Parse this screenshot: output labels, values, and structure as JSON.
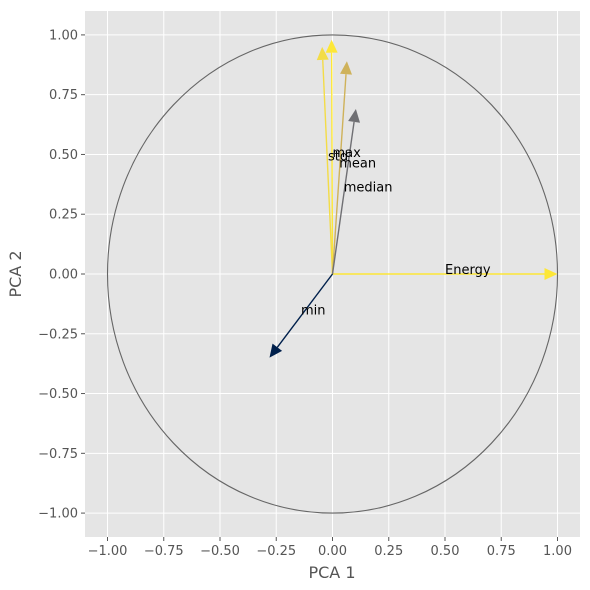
{
  "chart_data": {
    "type": "scatter",
    "subtype": "pca-correlation-circle",
    "xlabel": "PCA 1",
    "ylabel": "PCA 2",
    "xlim": [
      -1.1,
      1.1
    ],
    "ylim": [
      -1.1,
      1.1
    ],
    "xticks": [
      -1.0,
      -0.75,
      -0.5,
      -0.25,
      0.0,
      0.25,
      0.5,
      0.75,
      1.0
    ],
    "yticks": [
      -1.0,
      -0.75,
      -0.5,
      -0.25,
      0.0,
      0.25,
      0.5,
      0.75,
      1.0
    ],
    "xtick_labels": [
      "−1.00",
      "−0.75",
      "−0.50",
      "−0.25",
      "0.00",
      "0.25",
      "0.50",
      "0.75",
      "1.00"
    ],
    "ytick_labels": [
      "−1.00",
      "−0.75",
      "−0.50",
      "−0.25",
      "0.00",
      "0.25",
      "0.50",
      "0.75",
      "1.00"
    ],
    "grid": true,
    "background": "#e5e5e5",
    "grid_color": "#ffffff",
    "circle": {
      "radius": 1.0,
      "color": "#666666"
    },
    "vectors": [
      {
        "name": "Energy",
        "x": 1.0,
        "y": 0.0,
        "color": "#fde737",
        "label_x": 0.5,
        "label_y": 0.0
      },
      {
        "name": "min",
        "x": -0.28,
        "y": -0.35,
        "color": "#00204c",
        "label_x": -0.14,
        "label_y": -0.17
      },
      {
        "name": "max",
        "x": -0.004,
        "y": 0.98,
        "color": "#fde737",
        "label_x": 0.0,
        "label_y": 0.49
      },
      {
        "name": "std",
        "x": -0.046,
        "y": 0.95,
        "color": "#f3dc47",
        "label_x": -0.02,
        "label_y": 0.475
      },
      {
        "name": "mean",
        "x": 0.064,
        "y": 0.89,
        "color": "#cfb25a",
        "label_x": 0.03,
        "label_y": 0.445
      },
      {
        "name": "median",
        "x": 0.104,
        "y": 0.69,
        "color": "#6f6f73",
        "label_x": 0.05,
        "label_y": 0.345
      }
    ]
  }
}
